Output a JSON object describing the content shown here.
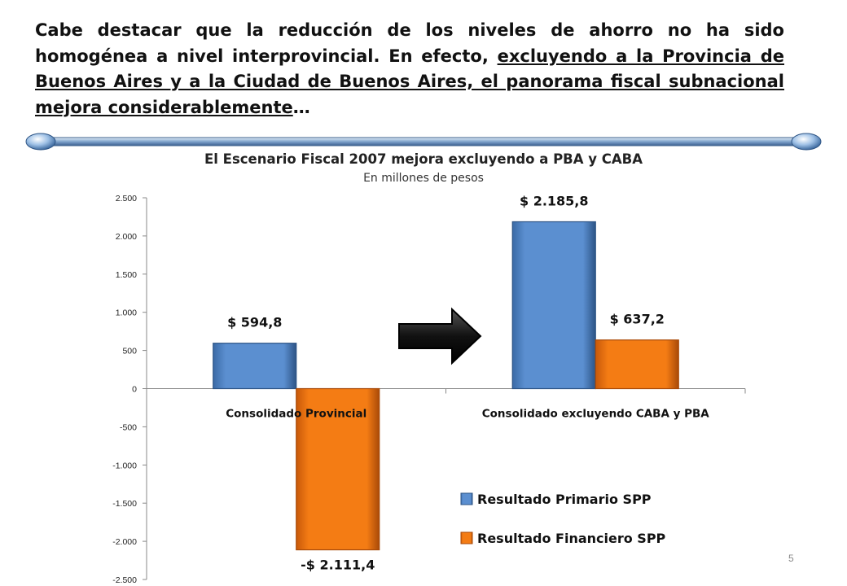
{
  "intro": {
    "part1": "Cabe destacar que la reducción de los niveles de ahorro no ha sido homogénea a nivel interprovincial. En efecto, ",
    "underlined": "excluyendo a la Provincia de Buenos Aires y a la Ciudad de Buenos Aires, el panorama fiscal subnacional mejora considerablemente",
    "ellipsis": "…"
  },
  "page_number": "5",
  "chart_data": {
    "type": "bar",
    "title": "El Escenario Fiscal 2007 mejora excluyendo a PBA y CABA",
    "subtitle": "En millones de pesos",
    "categories": [
      "Consolidado Provincial",
      "Consolidado excluyendo CABA y PBA"
    ],
    "series": [
      {
        "name": "Resultado Primario SPP",
        "values": [
          594.8,
          2185.8
        ],
        "labels": [
          "$ 594,8",
          "$ 2.185,8"
        ],
        "color": "#4f81bd"
      },
      {
        "name": "Resultado Financiero SPP",
        "values": [
          -2111.4,
          637.2
        ],
        "labels": [
          "-$ 2.111,4",
          "$ 637,2"
        ],
        "color": "#f0750f"
      }
    ],
    "ylim": [
      -2500,
      2500
    ],
    "yticks": [
      2500,
      2000,
      1500,
      1000,
      500,
      0,
      -500,
      -1000,
      -1500,
      -2000,
      -2500
    ],
    "ytick_labels": [
      "2.500",
      "2.000",
      "1.500",
      "1.000",
      "500",
      "0",
      "-500",
      "-1.000",
      "-1.500",
      "-2.000",
      "-2.500"
    ],
    "grid": false,
    "legend_position": "bottom-right",
    "annotation": "arrow-right"
  }
}
